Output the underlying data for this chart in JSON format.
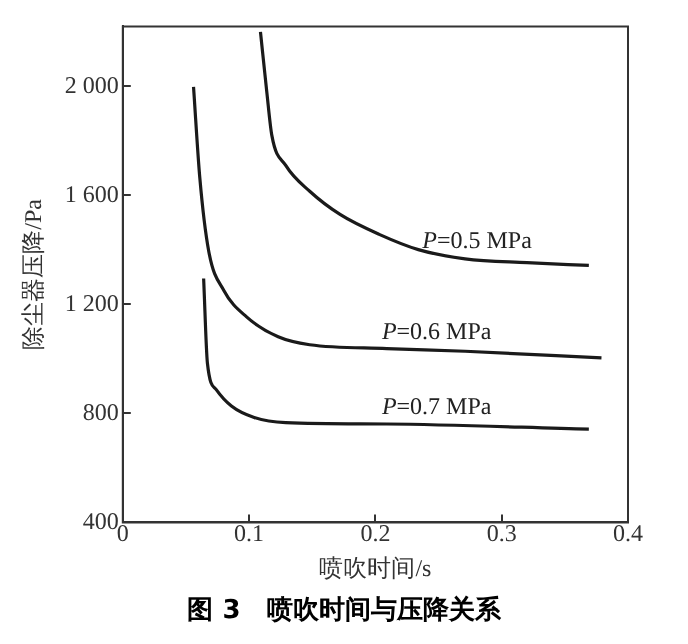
{
  "chart_data": {
    "type": "line",
    "title": "图 3　喷吹时间与压降关系",
    "xlabel": "喷吹时间/s",
    "ylabel": "除尘器压降/Pa",
    "xlim": [
      0,
      0.4
    ],
    "xticks": [
      0,
      0.1,
      0.2,
      0.3,
      0.4
    ],
    "ylim": [
      400,
      2220
    ],
    "yticks": [
      400,
      800,
      {
        "value": 1200,
        "label": "1 200"
      },
      {
        "value": 1600,
        "label": "1 600"
      },
      {
        "value": 2000,
        "label": "2 000"
      }
    ],
    "grid": false,
    "legend": false,
    "marker": "none",
    "line_style": "solid",
    "series": [
      {
        "name": "P=0.5 MPa",
        "color": "#1a1a1a",
        "x": [
          0.109,
          0.114,
          0.118,
          0.129,
          0.148,
          0.172,
          0.203,
          0.234,
          0.271,
          0.32,
          0.369
        ],
        "values": [
          2200,
          1980,
          1820,
          1710,
          1615,
          1530,
          1457,
          1401,
          1367,
          1353,
          1343
        ]
      },
      {
        "name": "P=0.6 MPa",
        "color": "#1a1a1a",
        "x": [
          0.056,
          0.061,
          0.068,
          0.08,
          0.098,
          0.123,
          0.148,
          0.209,
          0.271,
          0.379
        ],
        "values": [
          1998,
          1663,
          1396,
          1251,
          1154,
          1081,
          1052,
          1038,
          1028,
          1004
        ]
      },
      {
        "name": "P=0.7 MPa",
        "color": "#1a1a1a",
        "x": [
          0.064,
          0.067,
          0.074,
          0.086,
          0.104,
          0.129,
          0.209,
          0.369
        ],
        "values": [
          1295,
          984,
          887,
          827,
          785,
          766,
          761,
          742
        ]
      }
    ]
  }
}
